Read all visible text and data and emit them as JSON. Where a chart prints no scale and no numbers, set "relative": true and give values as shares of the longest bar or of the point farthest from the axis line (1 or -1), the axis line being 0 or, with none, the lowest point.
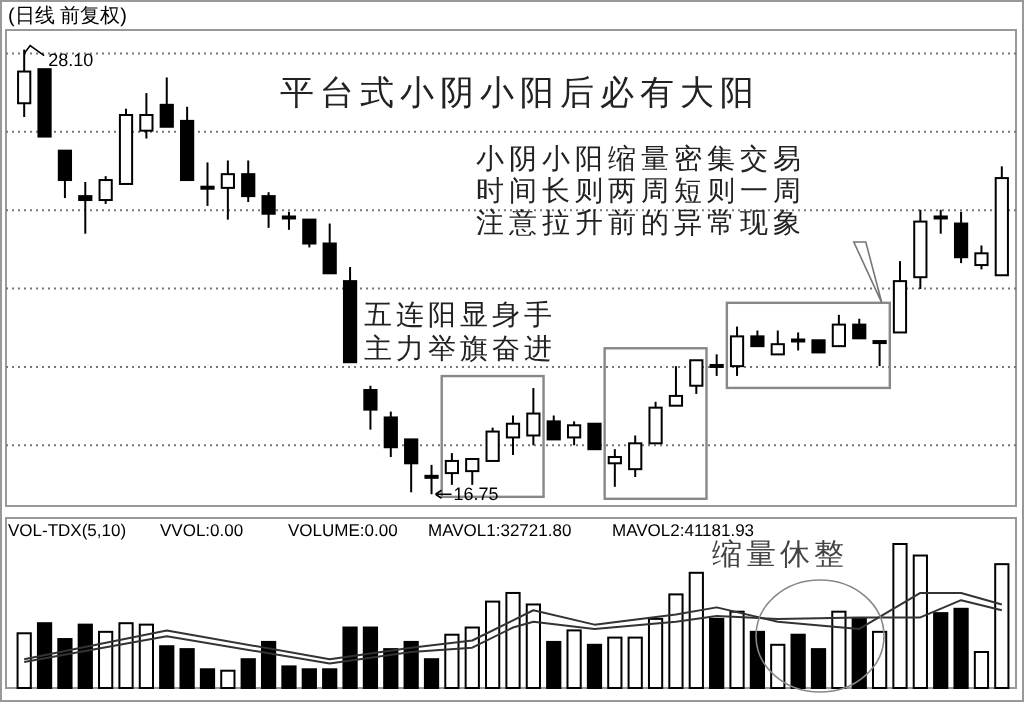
{
  "chart_data": [
    {
      "type": "candlestick",
      "title": "(日线 前复权)",
      "categories": [
        null,
        null,
        null,
        null,
        null,
        null,
        null,
        null,
        null,
        null,
        null,
        null,
        null,
        null,
        null,
        null,
        null,
        null,
        null,
        null,
        null,
        null,
        null,
        null,
        null,
        null,
        null,
        null,
        null,
        null,
        null,
        null,
        null,
        null,
        null,
        null,
        null,
        null,
        null,
        null,
        null,
        null,
        null,
        null,
        null,
        null,
        null,
        null,
        null
      ],
      "ohlc": [
        [
          26.73,
          28.1,
          26.38,
          27.54
        ],
        [
          27.6,
          27.6,
          25.88,
          25.88
        ],
        [
          25.52,
          25.52,
          24.31,
          24.77
        ],
        [
          24.36,
          24.72,
          23.4,
          24.26
        ],
        [
          24.26,
          24.87,
          24.16,
          24.77
        ],
        [
          24.67,
          26.59,
          24.67,
          26.43
        ],
        [
          26.03,
          26.99,
          25.83,
          26.43
        ],
        [
          26.69,
          27.39,
          26.13,
          26.13
        ],
        [
          26.28,
          26.64,
          24.77,
          24.77
        ],
        [
          24.6,
          25.22,
          24.11,
          24.57
        ],
        [
          24.57,
          25.27,
          23.76,
          24.92
        ],
        [
          24.92,
          25.27,
          24.21,
          24.36
        ],
        [
          24.36,
          24.46,
          23.55,
          23.91
        ],
        [
          23.84,
          23.96,
          23.5,
          23.81
        ],
        [
          23.76,
          23.76,
          23.05,
          23.15
        ],
        [
          23.15,
          23.66,
          22.39,
          22.39
        ],
        [
          22.19,
          22.55,
          20.12,
          20.12
        ],
        [
          19.41,
          19.52,
          18.4,
          18.91
        ],
        [
          18.71,
          18.86,
          17.7,
          17.95
        ],
        [
          18.15,
          18.15,
          16.8,
          17.54
        ],
        [
          17.22,
          17.5,
          16.75,
          17.19
        ],
        [
          17.29,
          17.8,
          16.99,
          17.6
        ],
        [
          17.34,
          17.65,
          16.99,
          17.65
        ],
        [
          17.6,
          18.45,
          17.6,
          18.35
        ],
        [
          18.2,
          18.76,
          17.75,
          18.55
        ],
        [
          18.25,
          19.46,
          18.0,
          18.81
        ],
        [
          18.61,
          18.76,
          18.15,
          18.15
        ],
        [
          18.2,
          18.61,
          18.0,
          18.51
        ],
        [
          18.55,
          18.55,
          17.9,
          17.9
        ],
        [
          17.54,
          17.9,
          16.94,
          17.7
        ],
        [
          17.39,
          18.25,
          17.19,
          18.05
        ],
        [
          18.05,
          19.11,
          18.05,
          18.96
        ],
        [
          19.01,
          20.02,
          19.01,
          19.26
        ],
        [
          19.52,
          20.17,
          19.31,
          20.17
        ],
        [
          20.05,
          20.32,
          19.77,
          20.02
        ],
        [
          20.02,
          21.03,
          19.77,
          20.78
        ],
        [
          20.78,
          20.93,
          20.53,
          20.53
        ],
        [
          20.32,
          20.93,
          20.32,
          20.58
        ],
        [
          20.7,
          20.88,
          20.42,
          20.68
        ],
        [
          20.68,
          20.68,
          20.37,
          20.37
        ],
        [
          20.53,
          21.33,
          20.53,
          21.08
        ],
        [
          21.08,
          21.23,
          20.73,
          20.73
        ],
        [
          20.63,
          20.66,
          20.02,
          20.66
        ],
        [
          20.88,
          22.7,
          20.88,
          22.19
        ],
        [
          22.29,
          24.01,
          21.99,
          23.71
        ],
        [
          23.84,
          24.01,
          23.4,
          23.81
        ],
        [
          23.66,
          23.96,
          22.65,
          22.8
        ],
        [
          22.6,
          23.1,
          22.49,
          22.9
        ],
        [
          22.34,
          25.12,
          22.34,
          24.82
        ]
      ],
      "ylim": [
        16.45,
        28.6
      ],
      "yticks": [
        {
          "value": 18,
          "label": null
        },
        {
          "value": 20,
          "label": null
        },
        {
          "value": 22,
          "label": null
        },
        {
          "value": 24,
          "label": null
        },
        {
          "value": 26,
          "label": null
        },
        {
          "value": 28,
          "label": null
        }
      ],
      "grid": "y",
      "annotations": [
        "28.10",
        "16.75",
        "平台式小阴小阳后必有大阳",
        "小阴小阳缩量密集交易",
        "时间长则两周短则一周",
        "注意拉升前的异常现象",
        "五连阳显身手",
        "主力举旗奋进"
      ]
    },
    {
      "type": "bar",
      "relative": true,
      "categories": [
        null,
        null,
        null,
        null,
        null,
        null,
        null,
        null,
        null,
        null,
        null,
        null,
        null,
        null,
        null,
        null,
        null,
        null,
        null,
        null,
        null,
        null,
        null,
        null,
        null,
        null,
        null,
        null,
        null,
        null,
        null,
        null,
        null,
        null,
        null,
        null,
        null,
        null,
        null,
        null,
        null,
        null,
        null,
        null,
        null,
        null,
        null,
        null,
        null
      ],
      "values": [
        0.38,
        0.45,
        0.34,
        0.44,
        0.39,
        0.45,
        0.44,
        0.29,
        0.27,
        0.13,
        0.12,
        0.2,
        0.32,
        0.15,
        0.13,
        0.13,
        0.42,
        0.42,
        0.27,
        0.32,
        0.2,
        0.37,
        0.42,
        0.6,
        0.66,
        0.58,
        0.32,
        0.4,
        0.3,
        0.35,
        0.35,
        0.48,
        0.65,
        0.8,
        0.48,
        0.53,
        0.39,
        0.3,
        0.37,
        0.27,
        0.53,
        0.48,
        0.39,
        1,
        0.92,
        0.52,
        0.55,
        0.25,
        0.86
      ],
      "colors": [
        "#ffffff",
        "#000000",
        "#000000",
        "#000000",
        "#ffffff",
        "#ffffff",
        "#ffffff",
        "#000000",
        "#000000",
        "#000000",
        "#ffffff",
        "#000000",
        "#000000",
        "#000000",
        "#000000",
        "#000000",
        "#000000",
        "#000000",
        "#000000",
        "#000000",
        "#000000",
        "#ffffff",
        "#ffffff",
        "#ffffff",
        "#ffffff",
        "#ffffff",
        "#000000",
        "#ffffff",
        "#000000",
        "#ffffff",
        "#ffffff",
        "#ffffff",
        "#ffffff",
        "#ffffff",
        "#000000",
        "#ffffff",
        "#000000",
        "#ffffff",
        "#000000",
        "#000000",
        "#ffffff",
        "#000000",
        "#ffffff",
        "#ffffff",
        "#ffffff",
        "#000000",
        "#000000",
        "#ffffff",
        "#ffffff"
      ],
      "series": [
        {
          "type": "line",
          "color": "#333333",
          "values": [
            0.2,
            null,
            null,
            null,
            null,
            null,
            null,
            0.4,
            null,
            null,
            null,
            null,
            null,
            null,
            null,
            0.2,
            null,
            null,
            null,
            0.28,
            null,
            null,
            0.33,
            null,
            0.47,
            0.54,
            null,
            null,
            0.44,
            null,
            null,
            null,
            0.51,
            null,
            0.56,
            null,
            null,
            0.46,
            null,
            null,
            null,
            0.41,
            null,
            null,
            0.66,
            null,
            0.66,
            null,
            0.58
          ]
        },
        {
          "type": "line",
          "color": "#333333",
          "values": [
            0.18,
            null,
            null,
            null,
            null,
            null,
            null,
            0.36,
            null,
            null,
            null,
            null,
            null,
            null,
            null,
            0.17,
            null,
            null,
            null,
            0.25,
            null,
            null,
            0.28,
            null,
            0.42,
            0.46,
            null,
            null,
            0.41,
            null,
            null,
            null,
            0.46,
            null,
            0.5,
            null,
            null,
            0.48,
            null,
            null,
            null,
            0.49,
            null,
            null,
            0.49,
            null,
            0.61,
            null,
            0.54
          ]
        }
      ],
      "annotations": [
        "VOL-TDX(5,10)",
        "VVOL:0.00",
        "VOLUME:0.00",
        "MAVOL1:32721.80",
        "MAVOL2:41181.93",
        "缩量休整"
      ]
    }
  ]
}
